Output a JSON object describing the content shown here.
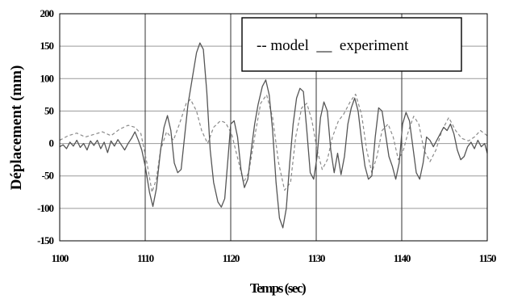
{
  "chart_data": {
    "type": "line",
    "title": "",
    "xlabel": "Temps (sec)",
    "ylabel": "Déplacement (mm)",
    "xlim": [
      1100,
      1150
    ],
    "ylim": [
      -150,
      200
    ],
    "x_ticks": [
      1100,
      1110,
      1120,
      1130,
      1140,
      1150
    ],
    "y_ticks": [
      200,
      150,
      100,
      50,
      0,
      -50,
      -100,
      -150
    ],
    "grid": true,
    "legend_text": "-- model  __  experiment",
    "legend_position": "top-right",
    "series": [
      {
        "name": "model",
        "style": "dashed",
        "color": "#8a8a8a",
        "points": [
          [
            1100,
            5
          ],
          [
            1101,
            12
          ],
          [
            1102,
            16
          ],
          [
            1103,
            10
          ],
          [
            1104,
            14
          ],
          [
            1105,
            18
          ],
          [
            1106,
            12
          ],
          [
            1107,
            22
          ],
          [
            1108,
            28
          ],
          [
            1108.8,
            25
          ],
          [
            1109.5,
            15
          ],
          [
            1110.2,
            -30
          ],
          [
            1110.8,
            -75
          ],
          [
            1111.3,
            -55
          ],
          [
            1111.8,
            -10
          ],
          [
            1112.5,
            18
          ],
          [
            1113.3,
            5
          ],
          [
            1114,
            30
          ],
          [
            1114.8,
            62
          ],
          [
            1115.3,
            68
          ],
          [
            1116,
            50
          ],
          [
            1116.6,
            20
          ],
          [
            1117.3,
            0
          ],
          [
            1118,
            25
          ],
          [
            1118.8,
            35
          ],
          [
            1119.4,
            32
          ],
          [
            1120.1,
            15
          ],
          [
            1120.8,
            -22
          ],
          [
            1121.5,
            -60
          ],
          [
            1122.1,
            -45
          ],
          [
            1122.8,
            10
          ],
          [
            1123.5,
            62
          ],
          [
            1124.2,
            75
          ],
          [
            1124.9,
            40
          ],
          [
            1125.6,
            -30
          ],
          [
            1126.3,
            -72
          ],
          [
            1127,
            -60
          ],
          [
            1127.6,
            10
          ],
          [
            1128.3,
            55
          ],
          [
            1128.9,
            62
          ],
          [
            1129.5,
            35
          ],
          [
            1130.1,
            -10
          ],
          [
            1130.7,
            -40
          ],
          [
            1131.3,
            -25
          ],
          [
            1131.9,
            10
          ],
          [
            1132.6,
            35
          ],
          [
            1133.2,
            45
          ],
          [
            1134,
            65
          ],
          [
            1134.6,
            76
          ],
          [
            1135.3,
            45
          ],
          [
            1135.9,
            -10
          ],
          [
            1136.5,
            -45
          ],
          [
            1137.1,
            -20
          ],
          [
            1137.7,
            20
          ],
          [
            1138.4,
            30
          ],
          [
            1139,
            10
          ],
          [
            1139.6,
            -25
          ],
          [
            1140.2,
            -10
          ],
          [
            1140.8,
            20
          ],
          [
            1141.4,
            42
          ],
          [
            1142,
            30
          ],
          [
            1142.6,
            -10
          ],
          [
            1143.3,
            -28
          ],
          [
            1144,
            -10
          ],
          [
            1144.7,
            20
          ],
          [
            1145.5,
            40
          ],
          [
            1146.3,
            20
          ],
          [
            1147,
            8
          ],
          [
            1147.8,
            4
          ],
          [
            1148.5,
            10
          ],
          [
            1149.2,
            20
          ],
          [
            1150,
            12
          ]
        ]
      },
      {
        "name": "experiment",
        "style": "solid",
        "color": "#555555",
        "points": [
          [
            1100,
            -5
          ],
          [
            1100.4,
            -2
          ],
          [
            1100.8,
            -8
          ],
          [
            1101.2,
            2
          ],
          [
            1101.6,
            -4
          ],
          [
            1102,
            5
          ],
          [
            1102.4,
            -6
          ],
          [
            1102.8,
            0
          ],
          [
            1103.2,
            -10
          ],
          [
            1103.6,
            4
          ],
          [
            1104,
            -3
          ],
          [
            1104.4,
            5
          ],
          [
            1104.8,
            -8
          ],
          [
            1105.2,
            2
          ],
          [
            1105.6,
            -14
          ],
          [
            1106,
            4
          ],
          [
            1106.4,
            -4
          ],
          [
            1106.8,
            6
          ],
          [
            1107.2,
            -2
          ],
          [
            1107.6,
            -10
          ],
          [
            1108,
            0
          ],
          [
            1108.4,
            8
          ],
          [
            1108.8,
            18
          ],
          [
            1109.2,
            5
          ],
          [
            1109.6,
            -10
          ],
          [
            1110,
            -35
          ],
          [
            1110.5,
            -75
          ],
          [
            1110.9,
            -97
          ],
          [
            1111.3,
            -70
          ],
          [
            1111.8,
            -10
          ],
          [
            1112.2,
            25
          ],
          [
            1112.6,
            43
          ],
          [
            1113,
            20
          ],
          [
            1113.4,
            -30
          ],
          [
            1113.8,
            -45
          ],
          [
            1114.2,
            -40
          ],
          [
            1114.6,
            10
          ],
          [
            1115,
            60
          ],
          [
            1115.5,
            100
          ],
          [
            1116,
            140
          ],
          [
            1116.4,
            155
          ],
          [
            1116.8,
            145
          ],
          [
            1117.2,
            80
          ],
          [
            1117.6,
            -10
          ],
          [
            1118,
            -60
          ],
          [
            1118.5,
            -90
          ],
          [
            1118.9,
            -98
          ],
          [
            1119.3,
            -85
          ],
          [
            1119.7,
            -20
          ],
          [
            1120,
            30
          ],
          [
            1120.4,
            35
          ],
          [
            1120.8,
            10
          ],
          [
            1121.2,
            -40
          ],
          [
            1121.6,
            -68
          ],
          [
            1122,
            -55
          ],
          [
            1122.4,
            -10
          ],
          [
            1122.8,
            30
          ],
          [
            1123.2,
            60
          ],
          [
            1123.7,
            88
          ],
          [
            1124.1,
            98
          ],
          [
            1124.5,
            75
          ],
          [
            1124.9,
            20
          ],
          [
            1125.3,
            -60
          ],
          [
            1125.7,
            -115
          ],
          [
            1126.1,
            -130
          ],
          [
            1126.5,
            -100
          ],
          [
            1126.9,
            -30
          ],
          [
            1127.3,
            30
          ],
          [
            1127.7,
            70
          ],
          [
            1128.1,
            85
          ],
          [
            1128.5,
            80
          ],
          [
            1128.9,
            20
          ],
          [
            1129.3,
            -45
          ],
          [
            1129.7,
            -55
          ],
          [
            1130.1,
            -20
          ],
          [
            1130.5,
            40
          ],
          [
            1130.9,
            64
          ],
          [
            1131.3,
            50
          ],
          [
            1131.7,
            -10
          ],
          [
            1132.1,
            -45
          ],
          [
            1132.5,
            -15
          ],
          [
            1132.9,
            -48
          ],
          [
            1133.3,
            -20
          ],
          [
            1133.7,
            30
          ],
          [
            1134.1,
            55
          ],
          [
            1134.5,
            70
          ],
          [
            1134.9,
            50
          ],
          [
            1135.3,
            5
          ],
          [
            1135.7,
            -35
          ],
          [
            1136.1,
            -55
          ],
          [
            1136.5,
            -50
          ],
          [
            1136.9,
            10
          ],
          [
            1137.3,
            55
          ],
          [
            1137.7,
            50
          ],
          [
            1138.1,
            15
          ],
          [
            1138.5,
            -20
          ],
          [
            1138.9,
            -35
          ],
          [
            1139.3,
            -55
          ],
          [
            1139.7,
            -30
          ],
          [
            1140.1,
            30
          ],
          [
            1140.5,
            48
          ],
          [
            1140.9,
            35
          ],
          [
            1141.3,
            -5
          ],
          [
            1141.7,
            -45
          ],
          [
            1142.1,
            -55
          ],
          [
            1142.5,
            -30
          ],
          [
            1142.9,
            10
          ],
          [
            1143.3,
            5
          ],
          [
            1143.7,
            -5
          ],
          [
            1144.1,
            5
          ],
          [
            1144.5,
            15
          ],
          [
            1144.9,
            25
          ],
          [
            1145.3,
            20
          ],
          [
            1145.7,
            30
          ],
          [
            1146.1,
            15
          ],
          [
            1146.5,
            -10
          ],
          [
            1146.9,
            -25
          ],
          [
            1147.3,
            -20
          ],
          [
            1147.7,
            -5
          ],
          [
            1148.1,
            2
          ],
          [
            1148.5,
            -8
          ],
          [
            1148.9,
            5
          ],
          [
            1149.3,
            -5
          ],
          [
            1149.7,
            0
          ],
          [
            1150,
            -15
          ]
        ]
      }
    ]
  }
}
